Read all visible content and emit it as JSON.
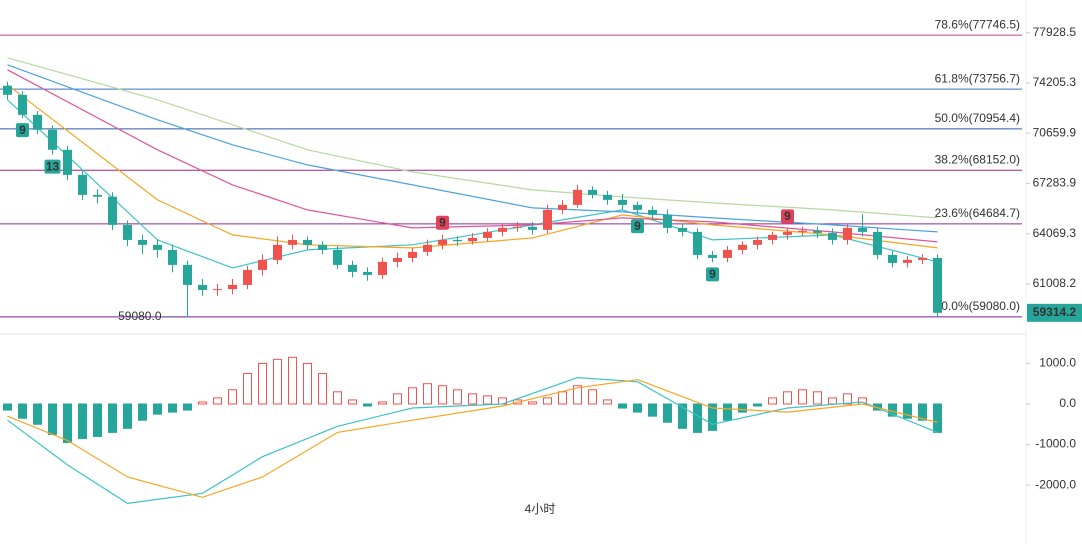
{
  "chart_data": [
    {
      "type": "candlestick",
      "log_scale": true,
      "ylim": [
        58330,
        80450
      ],
      "yticks": [
        77928.5,
        74205.3,
        70659.9,
        67283.9,
        64069.3,
        61008.2
      ],
      "up_color": "#ef5350",
      "down_color": "#26a69a",
      "open": [
        74000,
        73350,
        71934,
        70892,
        69525,
        67847,
        66537,
        66420,
        64620,
        63680,
        63376,
        63064,
        62149,
        60949,
        60652,
        60700,
        60949,
        61846,
        62453,
        63376,
        63680,
        63376,
        63064,
        62149,
        61726,
        61546,
        62331,
        62574,
        62942,
        63376,
        63680,
        63600,
        63807,
        64181,
        64432,
        64500,
        64306,
        65573,
        65893,
        66864,
        66537,
        66215,
        65893,
        65573,
        65253,
        64432,
        64181,
        62757,
        62574,
        63064,
        63376,
        63680,
        63993,
        64181,
        64250,
        64118,
        63680,
        64432,
        64181,
        62757,
        62270,
        62453,
        62574
      ],
      "high": [
        74300,
        73600,
        72200,
        71200,
        69800,
        68100,
        66900,
        66700,
        64900,
        64000,
        63700,
        63400,
        62400,
        61300,
        61000,
        61300,
        62100,
        62800,
        63900,
        64000,
        63900,
        63600,
        63300,
        62400,
        62000,
        62600,
        62900,
        63200,
        63700,
        64000,
        63900,
        64100,
        64400,
        64700,
        64800,
        64800,
        65900,
        66200,
        67200,
        67100,
        66800,
        66600,
        66100,
        65800,
        65600,
        64700,
        64400,
        63000,
        63300,
        63600,
        63900,
        64200,
        64400,
        64500,
        64500,
        64400,
        64700,
        65300,
        64400,
        63000,
        62700,
        62800,
        62800
      ],
      "low": [
        73000,
        71700,
        70600,
        69200,
        67500,
        66200,
        66000,
        64300,
        63300,
        62800,
        62600,
        61700,
        59080,
        60300,
        60300,
        60400,
        60700,
        61500,
        62200,
        63100,
        63100,
        62800,
        61900,
        61400,
        61200,
        61300,
        62000,
        62300,
        62700,
        63100,
        63300,
        63400,
        63600,
        63900,
        64200,
        64000,
        64100,
        65300,
        65700,
        66300,
        65900,
        65600,
        65300,
        64900,
        64100,
        63900,
        62500,
        62300,
        62300,
        62800,
        63100,
        63400,
        63700,
        63900,
        63800,
        63400,
        63400,
        63900,
        62500,
        62000,
        62000,
        62200,
        59080
      ],
      "close": [
        73350,
        71934,
        70892,
        69525,
        67847,
        66537,
        66420,
        64620,
        63680,
        63376,
        63064,
        62149,
        60949,
        60652,
        60700,
        60949,
        61846,
        62453,
        63376,
        63680,
        63376,
        63064,
        62149,
        61726,
        61546,
        62331,
        62574,
        62942,
        63376,
        63680,
        63600,
        63807,
        64181,
        64432,
        64500,
        64306,
        65573,
        65893,
        66864,
        66537,
        66215,
        65893,
        65573,
        65253,
        64432,
        64181,
        62757,
        62574,
        63064,
        63376,
        63680,
        63993,
        64181,
        64250,
        64118,
        63680,
        64432,
        64181,
        62757,
        62270,
        62453,
        62574,
        59314.2
      ],
      "moving_averages": [
        {
          "color": "#3cc3c8",
          "x": [
            0,
            10,
            15,
            20,
            27,
            35,
            41,
            47,
            55,
            62
          ],
          "values": [
            72996,
            63680,
            61967,
            63064,
            63376,
            64620,
            65573,
            63680,
            63993,
            62331
          ]
        },
        {
          "color": "#f5a623",
          "x": [
            0,
            10,
            15,
            20,
            27,
            35,
            41,
            47,
            55,
            62
          ],
          "values": [
            74070,
            66215,
            63993,
            63376,
            63187,
            63807,
            65253,
            64620,
            63993,
            63187
          ]
        },
        {
          "color": "#e0569a",
          "x": [
            0,
            10,
            15,
            20,
            27,
            35,
            41,
            47,
            55,
            62
          ],
          "values": [
            75162,
            69525,
            67190,
            65573,
            64432,
            64620,
            65063,
            64810,
            64181,
            63558
          ]
        },
        {
          "color": "#4aa3df",
          "x": [
            0,
            10,
            15,
            20,
            27,
            35,
            41,
            47,
            55,
            62
          ],
          "values": [
            75527,
            71587,
            69862,
            68512,
            67190,
            65700,
            65445,
            65063,
            64620,
            64181
          ]
        },
        {
          "color": "#b9d8a0",
          "x": [
            0,
            10,
            15,
            20,
            27,
            35,
            41,
            47,
            55,
            62
          ],
          "values": [
            76047,
            72996,
            71238,
            69525,
            68047,
            66864,
            66408,
            66021,
            65573,
            65063
          ]
        }
      ],
      "fib_levels": [
        {
          "label": "78.6%(77746.5)",
          "value": 77746.5,
          "color": "#c2408e"
        },
        {
          "label": "61.8%(73756.7)",
          "value": 73756.7,
          "color": "#3f6fc4"
        },
        {
          "label": "50.0%(70954.4)",
          "value": 70954.4,
          "color": "#2a5aa8"
        },
        {
          "label": "38.2%(68152.0)",
          "value": 68152.0,
          "color": "#a0208a"
        },
        {
          "label": "23.6%(64684.7)",
          "value": 64684.7,
          "color": "#8b2a9a"
        },
        {
          "label": "0.0%(59080.0)",
          "value": 59080.0,
          "color": "#7b1fa2"
        }
      ],
      "low_marker": {
        "label": "59080.0",
        "value": 59080,
        "candle": 12
      },
      "last_price": {
        "value": 59314.2,
        "color": "#26a69a"
      },
      "markers": [
        {
          "text": "9",
          "candle": 1,
          "side": "below",
          "color": "#26a69a"
        },
        {
          "text": "13",
          "candle": 3,
          "side": "below",
          "color": "#26a69a"
        },
        {
          "text": "9",
          "candle": 29,
          "side": "above",
          "color": "#e0435b"
        },
        {
          "text": "9",
          "candle": 42,
          "side": "below",
          "color": "#26a69a"
        },
        {
          "text": "9",
          "candle": 47,
          "side": "below",
          "color": "#26a69a"
        },
        {
          "text": "9",
          "candle": 52,
          "side": "above",
          "color": "#e0435b"
        }
      ]
    },
    {
      "type": "macd",
      "label": "4小时",
      "ylim": [
        -3450,
        1700
      ],
      "yticks": [
        {
          "value": 1000,
          "label": "1000.0"
        },
        {
          "value": 0,
          "label": "0.0"
        },
        {
          "value": -1000,
          "label": "-1000.0"
        },
        {
          "value": -2000,
          "label": "-2000.0"
        }
      ],
      "up_color": "#ef5350",
      "down_color": "#26a69a",
      "histogram": [
        -150,
        -350,
        -500,
        -750,
        -950,
        -850,
        -800,
        -700,
        -600,
        -400,
        -250,
        -200,
        -150,
        50,
        150,
        350,
        750,
        1000,
        1100,
        1150,
        1000,
        750,
        300,
        100,
        -50,
        50,
        250,
        400,
        500,
        450,
        350,
        250,
        200,
        150,
        100,
        50,
        150,
        300,
        450,
        350,
        100,
        -100,
        -200,
        -300,
        -450,
        -600,
        -700,
        -650,
        -400,
        -200,
        -50,
        150,
        300,
        350,
        300,
        150,
        250,
        150,
        -150,
        -300,
        -350,
        -400,
        -700
      ],
      "series": [
        {
          "color": "#3cc3c8",
          "x": [
            0,
            4,
            8,
            13,
            17,
            22,
            27,
            33,
            38,
            42,
            47,
            52,
            57,
            62
          ],
          "values": [
            -400,
            -1500,
            -2450,
            -2200,
            -1300,
            -550,
            -100,
            0,
            650,
            550,
            -500,
            -100,
            50,
            -700
          ]
        },
        {
          "color": "#f5a623",
          "x": [
            0,
            4,
            8,
            13,
            17,
            22,
            27,
            33,
            38,
            42,
            47,
            52,
            57,
            62
          ],
          "values": [
            -300,
            -900,
            -1800,
            -2300,
            -1800,
            -700,
            -400,
            -50,
            400,
            600,
            -100,
            -200,
            0,
            -450
          ]
        }
      ]
    }
  ]
}
